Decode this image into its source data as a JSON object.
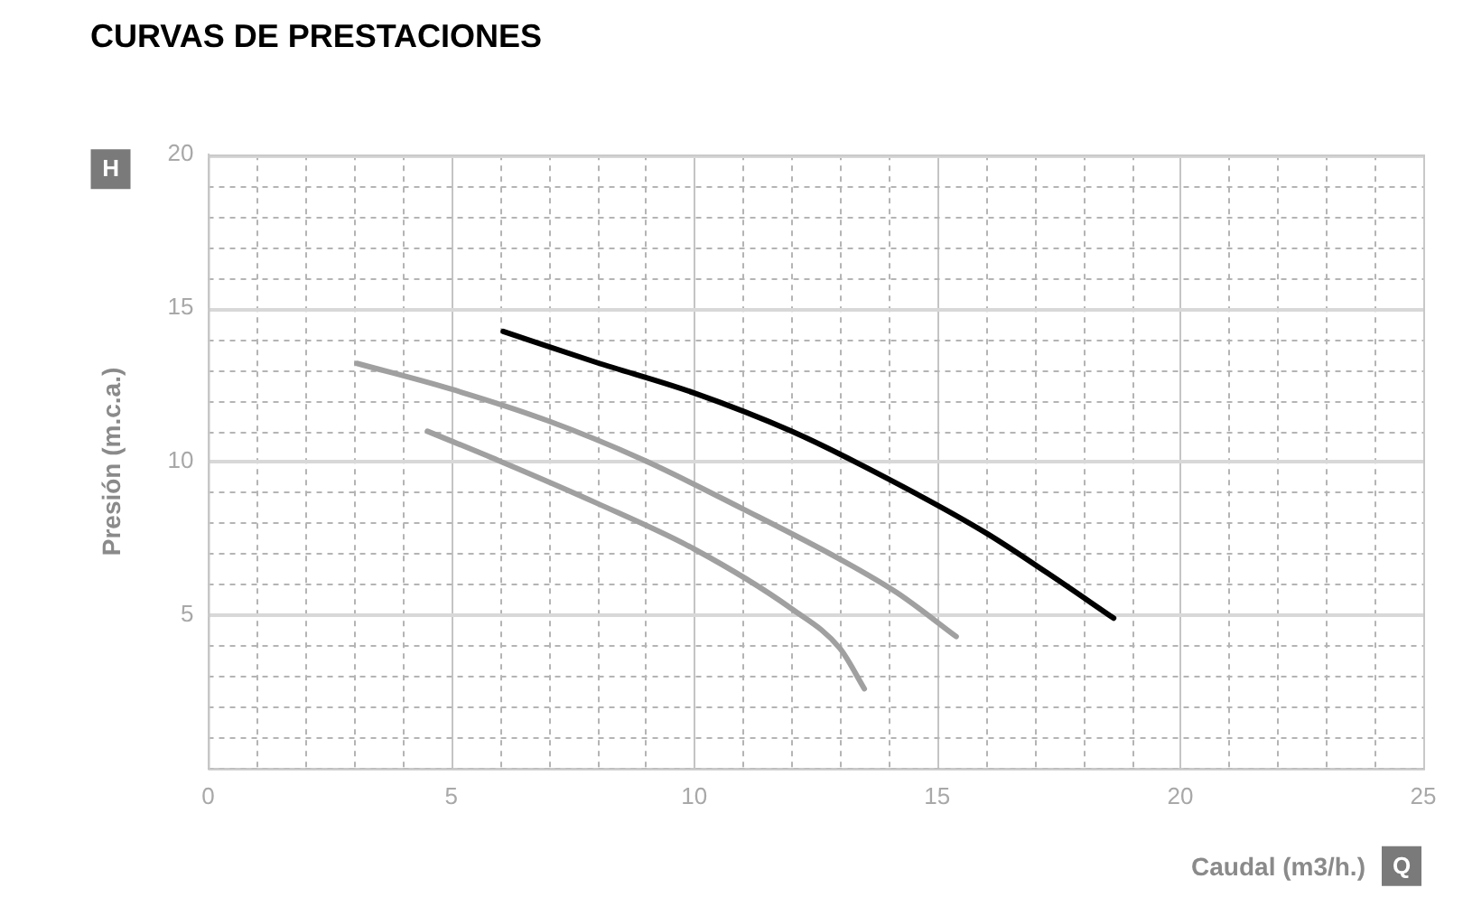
{
  "chart_data": {
    "type": "line",
    "title": "CURVAS DE PRESTACIONES",
    "xlabel": "Caudal (m3/h.)",
    "ylabel": "Presión (m.c.a.)",
    "annotations": [
      "H",
      "Q"
    ],
    "series": [
      {
        "color": "#000000",
        "x": [
          6.07,
          7.99,
          9.99,
          12.0,
          14.0,
          16.0,
          17.26,
          18.63
        ],
        "values": [
          14.24,
          13.23,
          12.24,
          10.99,
          9.43,
          7.68,
          6.38,
          4.9
        ]
      },
      {
        "color": "#a0a0a0",
        "x": [
          3.06,
          4.98,
          6.99,
          8.99,
          11.0,
          13.0,
          14.17,
          15.39
        ],
        "values": [
          13.2,
          12.37,
          11.33,
          10.03,
          8.46,
          6.82,
          5.73,
          4.3
        ]
      },
      {
        "color": "#a0a0a0",
        "x": [
          4.51,
          5.98,
          7.99,
          9.99,
          12.0,
          13.0,
          13.5
        ],
        "values": [
          10.99,
          10.03,
          8.65,
          7.16,
          5.21,
          3.91,
          2.6
        ]
      }
    ],
    "xlim": [
      0,
      25
    ],
    "xticks": [
      0,
      {
        "value": 1,
        "label": null
      },
      {
        "value": 2,
        "label": null
      },
      {
        "value": 3,
        "label": null
      },
      {
        "value": 4,
        "label": null
      },
      5,
      {
        "value": 6,
        "label": null
      },
      {
        "value": 7,
        "label": null
      },
      {
        "value": 8,
        "label": null
      },
      {
        "value": 9,
        "label": null
      },
      10,
      {
        "value": 11,
        "label": null
      },
      {
        "value": 12,
        "label": null
      },
      {
        "value": 13,
        "label": null
      },
      {
        "value": 14,
        "label": null
      },
      15,
      {
        "value": 16,
        "label": null
      },
      {
        "value": 17,
        "label": null
      },
      {
        "value": 18,
        "label": null
      },
      {
        "value": 19,
        "label": null
      },
      20,
      {
        "value": 21,
        "label": null
      },
      {
        "value": 22,
        "label": null
      },
      {
        "value": 23,
        "label": null
      },
      {
        "value": 24,
        "label": null
      },
      25
    ],
    "ylim": [
      0,
      20
    ],
    "yticks": [
      {
        "value": 0,
        "label": null
      },
      {
        "value": 1,
        "label": null
      },
      {
        "value": 2,
        "label": null
      },
      {
        "value": 3,
        "label": null
      },
      {
        "value": 4,
        "label": null
      },
      5,
      {
        "value": 6,
        "label": null
      },
      {
        "value": 7,
        "label": null
      },
      {
        "value": 8,
        "label": null
      },
      {
        "value": 9,
        "label": null
      },
      10,
      {
        "value": 11,
        "label": null
      },
      {
        "value": 12,
        "label": null
      },
      {
        "value": 13,
        "label": null
      },
      {
        "value": 14,
        "label": null
      },
      15,
      {
        "value": 16,
        "label": null
      },
      {
        "value": 17,
        "label": null
      },
      {
        "value": 18,
        "label": null
      },
      {
        "value": 19,
        "label": null
      },
      20
    ],
    "grid": true,
    "marker": "none",
    "line_style": "solid"
  }
}
